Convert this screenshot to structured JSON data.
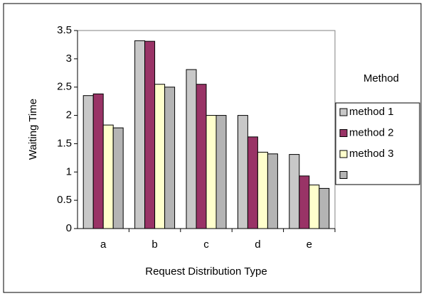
{
  "chart_data": {
    "type": "bar",
    "x_label": "Request Distribution Type",
    "y_label": "Waiting Time",
    "legend_title": "Method",
    "categories": [
      "a",
      "b",
      "c",
      "d",
      "e"
    ],
    "series": [
      {
        "name": "method 1",
        "color": "#c8c8c8",
        "values": [
          2.35,
          3.32,
          2.81,
          2.0,
          1.31
        ]
      },
      {
        "name": "method 2",
        "color": "#993366",
        "values": [
          2.38,
          3.31,
          2.55,
          1.62,
          0.93
        ]
      },
      {
        "name": "method 3",
        "color": "#ffffcc",
        "values": [
          1.83,
          2.55,
          2.0,
          1.35,
          0.77
        ]
      },
      {
        "color": "#b4b4b4",
        "values": [
          1.78,
          2.5,
          2.0,
          1.32,
          0.71
        ]
      }
    ],
    "ylim": [
      0,
      3.5
    ],
    "yticks": [
      0,
      0.5,
      1,
      1.5,
      2,
      2.5,
      3,
      3.5
    ],
    "grid": false,
    "legend": "right"
  }
}
